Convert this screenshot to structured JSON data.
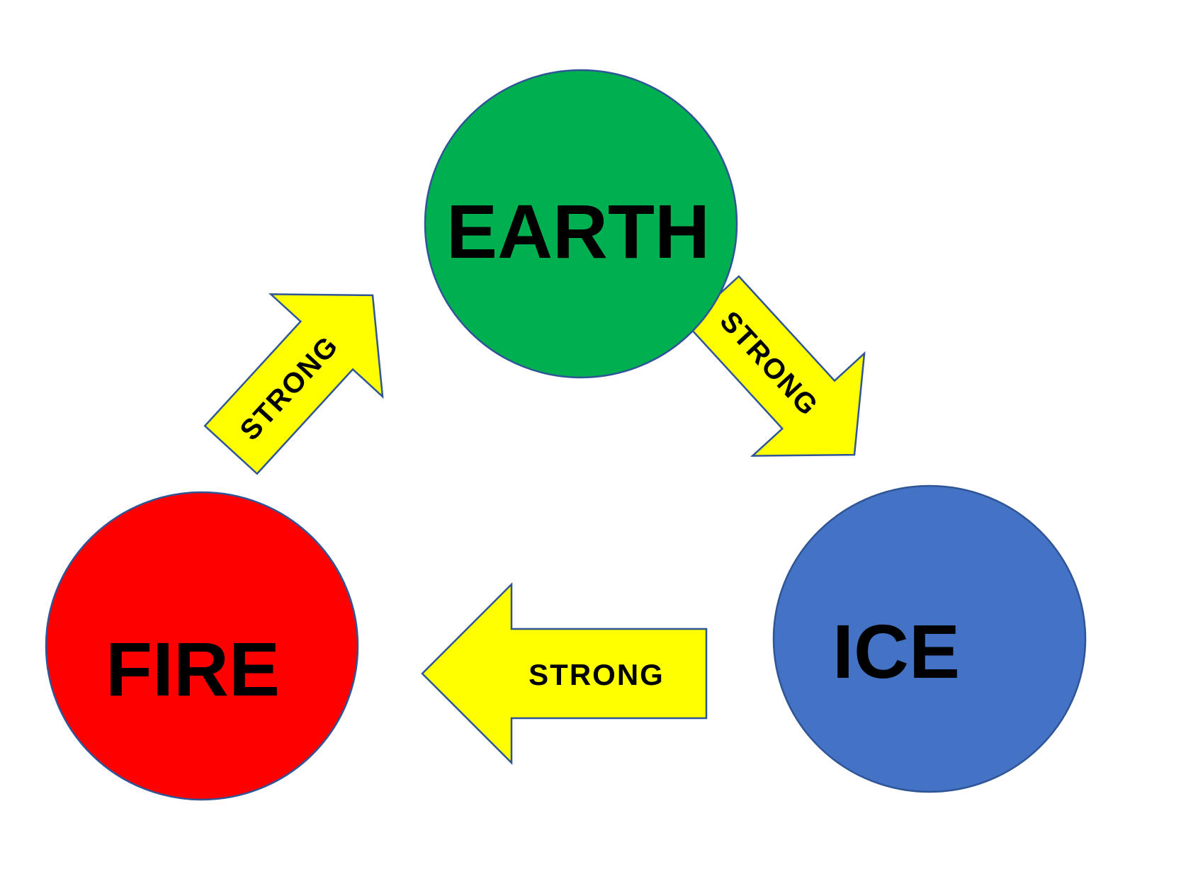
{
  "nodes": {
    "earth": {
      "label": "EARTH",
      "color": "#00b050"
    },
    "ice": {
      "label": "ICE",
      "color": "#4472c4"
    },
    "fire": {
      "label": "FIRE",
      "color": "#ff0000"
    }
  },
  "edges": [
    {
      "from": "FIRE",
      "to": "EARTH",
      "label": "STRONG"
    },
    {
      "from": "EARTH",
      "to": "ICE",
      "label": "STRONG"
    },
    {
      "from": "ICE",
      "to": "FIRE",
      "label": "STRONG"
    }
  ],
  "colors": {
    "arrow_fill": "#ffff00",
    "outline": "#2f5597"
  }
}
